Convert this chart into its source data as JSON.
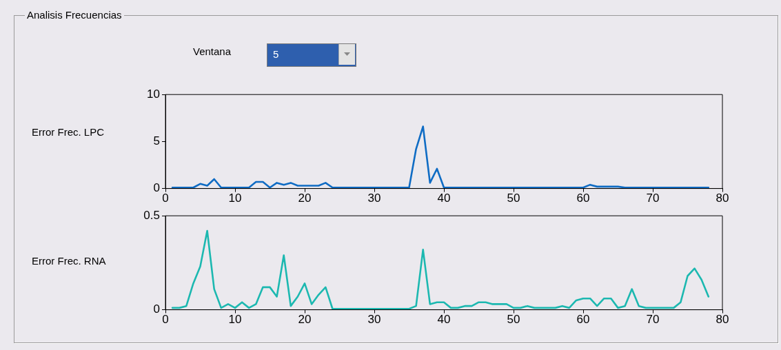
{
  "chart_data": [
    {
      "type": "line",
      "title": "Analisis Frecuencias",
      "annotations": [
        "Ventana",
        "5"
      ],
      "ylabel": "Error Frec. LPC",
      "marker": "none",
      "line_style": "solid",
      "x": [
        1,
        2,
        3,
        4,
        5,
        6,
        7,
        8,
        9,
        10,
        11,
        12,
        13,
        14,
        15,
        16,
        17,
        18,
        19,
        20,
        21,
        22,
        23,
        24,
        25,
        26,
        27,
        28,
        29,
        30,
        31,
        32,
        33,
        34,
        35,
        36,
        37,
        38,
        39,
        40,
        41,
        42,
        43,
        44,
        45,
        46,
        47,
        48,
        49,
        50,
        51,
        52,
        53,
        54,
        55,
        56,
        57,
        58,
        59,
        60,
        61,
        62,
        63,
        64,
        65,
        66,
        67,
        68,
        69,
        70,
        71,
        72,
        73,
        74,
        75,
        76,
        77,
        78
      ],
      "series": [
        {
          "color": "#0f6cc4",
          "values": [
            0.1,
            0.1,
            0.1,
            0.1,
            0.5,
            0.3,
            1.0,
            0.1,
            0.1,
            0.1,
            0.1,
            0.1,
            0.7,
            0.7,
            0.1,
            0.6,
            0.4,
            0.6,
            0.3,
            0.3,
            0.3,
            0.3,
            0.6,
            0.1,
            0.1,
            0.1,
            0.1,
            0.1,
            0.1,
            0.1,
            0.1,
            0.1,
            0.1,
            0.1,
            0.1,
            4.2,
            6.6,
            0.6,
            2.1,
            0.1,
            0.1,
            0.1,
            0.1,
            0.1,
            0.1,
            0.1,
            0.1,
            0.1,
            0.1,
            0.1,
            0.1,
            0.1,
            0.1,
            0.1,
            0.1,
            0.1,
            0.1,
            0.1,
            0.1,
            0.1,
            0.4,
            0.2,
            0.2,
            0.2,
            0.2,
            0.1,
            0.1,
            0.1,
            0.1,
            0.1,
            0.1,
            0.1,
            0.1,
            0.1,
            0.1,
            0.1,
            0.1,
            0.1
          ]
        }
      ],
      "xlim": [
        0,
        80
      ],
      "xticks": [
        0,
        10,
        20,
        30,
        40,
        50,
        60,
        70,
        80
      ],
      "ylim": [
        0,
        10
      ],
      "yticks": [
        0,
        5,
        10
      ]
    },
    {
      "type": "line",
      "ylabel": "Error Frec. RNA",
      "marker": "none",
      "line_style": "solid",
      "x": [
        1,
        2,
        3,
        4,
        5,
        6,
        7,
        8,
        9,
        10,
        11,
        12,
        13,
        14,
        15,
        16,
        17,
        18,
        19,
        20,
        21,
        22,
        23,
        24,
        25,
        26,
        27,
        28,
        29,
        30,
        31,
        32,
        33,
        34,
        35,
        36,
        37,
        38,
        39,
        40,
        41,
        42,
        43,
        44,
        45,
        46,
        47,
        48,
        49,
        50,
        51,
        52,
        53,
        54,
        55,
        56,
        57,
        58,
        59,
        60,
        61,
        62,
        63,
        64,
        65,
        66,
        67,
        68,
        69,
        70,
        71,
        72,
        73,
        74,
        75,
        76,
        77,
        78
      ],
      "series": [
        {
          "color": "#1cb8b0",
          "values": [
            0.01,
            0.01,
            0.02,
            0.14,
            0.23,
            0.42,
            0.11,
            0.01,
            0.03,
            0.01,
            0.04,
            0.01,
            0.03,
            0.12,
            0.12,
            0.07,
            0.29,
            0.02,
            0.07,
            0.14,
            0.03,
            0.08,
            0.12,
            0.005,
            0.005,
            0.005,
            0.005,
            0.005,
            0.005,
            0.005,
            0.005,
            0.005,
            0.005,
            0.005,
            0.005,
            0.02,
            0.32,
            0.03,
            0.04,
            0.04,
            0.01,
            0.01,
            0.02,
            0.02,
            0.04,
            0.04,
            0.03,
            0.03,
            0.03,
            0.01,
            0.01,
            0.02,
            0.01,
            0.01,
            0.01,
            0.01,
            0.02,
            0.01,
            0.05,
            0.06,
            0.06,
            0.02,
            0.06,
            0.06,
            0.01,
            0.02,
            0.11,
            0.02,
            0.01,
            0.01,
            0.01,
            0.01,
            0.01,
            0.04,
            0.18,
            0.22,
            0.16,
            0.07
          ]
        }
      ],
      "xlim": [
        0,
        80
      ],
      "xticks": [
        0,
        10,
        20,
        30,
        40,
        50,
        60,
        70,
        80
      ],
      "ylim": [
        0,
        0.5
      ],
      "yticks": [
        0,
        0.5
      ]
    }
  ]
}
